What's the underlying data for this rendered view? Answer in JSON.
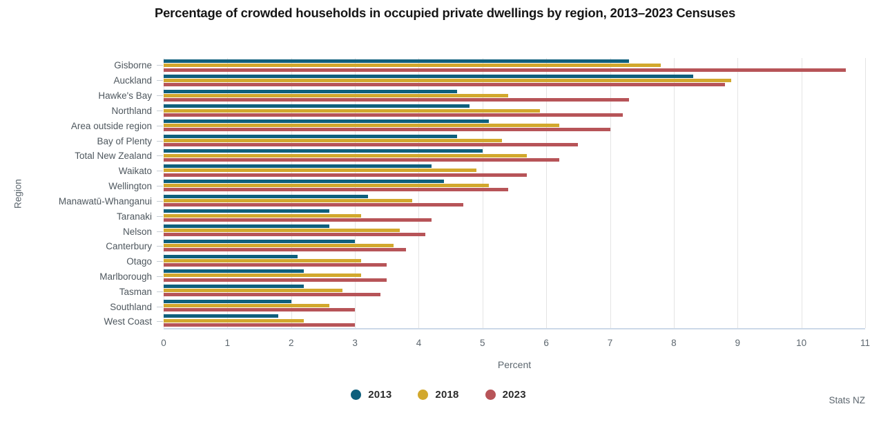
{
  "title": "Percentage of crowded households in occupied private dwellings by region, 2013–2023 Censuses",
  "source": "Stats NZ",
  "chart_data": {
    "type": "bar",
    "orientation": "horizontal",
    "title": "Percentage of crowded households in occupied private dwellings by region, 2013–2023 Censuses",
    "xlabel": "Percent",
    "ylabel": "Region",
    "xlim": [
      0,
      11
    ],
    "xticks": [
      0,
      1,
      2,
      3,
      4,
      5,
      6,
      7,
      8,
      9,
      10,
      11
    ],
    "grid": "vertical",
    "legend_position": "bottom",
    "categories": [
      "Gisborne",
      "Auckland",
      "Hawke's Bay",
      "Northland",
      "Area outside region",
      "Bay of Plenty",
      "Total New Zealand",
      "Waikato",
      "Wellington",
      "Manawatū-Whanganui",
      "Taranaki",
      "Nelson",
      "Canterbury",
      "Otago",
      "Marlborough",
      "Tasman",
      "Southland",
      "West Coast"
    ],
    "series": [
      {
        "name": "2013",
        "color": "#0e5f7c",
        "values": [
          7.3,
          8.3,
          4.6,
          4.8,
          5.1,
          4.6,
          5.0,
          4.2,
          4.4,
          3.2,
          2.6,
          2.6,
          3.0,
          2.1,
          2.2,
          2.2,
          2.0,
          1.8
        ]
      },
      {
        "name": "2018",
        "color": "#d2a82d",
        "values": [
          7.8,
          8.9,
          5.4,
          5.9,
          6.2,
          5.3,
          5.7,
          4.9,
          5.1,
          3.9,
          3.1,
          3.7,
          3.6,
          3.1,
          3.1,
          2.8,
          2.6,
          2.2
        ]
      },
      {
        "name": "2023",
        "color": "#b75458",
        "values": [
          10.7,
          8.8,
          7.3,
          7.2,
          7.0,
          6.5,
          6.2,
          5.7,
          5.4,
          4.7,
          4.2,
          4.1,
          3.8,
          3.5,
          3.5,
          3.4,
          3.0,
          3.0
        ]
      }
    ]
  }
}
